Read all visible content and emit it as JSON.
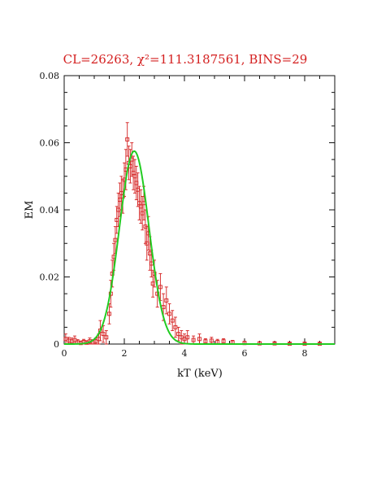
{
  "chart_data": {
    "type": "scatter",
    "title": "CL=26263, χ²=111.3187561, BINS=29",
    "xlabel": "kT (keV)",
    "ylabel": "EM",
    "xlim": [
      0,
      9
    ],
    "ylim": [
      0,
      0.08
    ],
    "xticks": [
      0,
      2,
      4,
      6,
      8
    ],
    "xtick_labels": [
      "0",
      "2",
      "4",
      "6",
      "8"
    ],
    "yticks": [
      0,
      0.02,
      0.04,
      0.06,
      0.08
    ],
    "ytick_labels": [
      "0",
      "0.02",
      "0.04",
      "0.06",
      "0.08"
    ],
    "grid": false,
    "colors": {
      "points": "#d42020",
      "fit": "#22cc22",
      "title": "#d42020",
      "axes": "#111111"
    },
    "series": [
      {
        "type": "scatter_errorbar",
        "points": [
          {
            "x": 0.05,
            "y": 0.0015,
            "err": 0.0015
          },
          {
            "x": 0.15,
            "y": 0.001,
            "err": 0.001
          },
          {
            "x": 0.25,
            "y": 0.0008,
            "err": 0.001
          },
          {
            "x": 0.35,
            "y": 0.0012,
            "err": 0.0012
          },
          {
            "x": 0.45,
            "y": 0.0005,
            "err": 0.0008
          },
          {
            "x": 0.55,
            "y": 0.0003,
            "err": 0.0006
          },
          {
            "x": 0.65,
            "y": 0.0006,
            "err": 0.0008
          },
          {
            "x": 0.75,
            "y": 0.0004,
            "err": 0.0006
          },
          {
            "x": 0.85,
            "y": 0.0008,
            "err": 0.001
          },
          {
            "x": 0.95,
            "y": 0.0005,
            "err": 0.0008
          },
          {
            "x": 1.05,
            "y": 0.0008,
            "err": 0.001
          },
          {
            "x": 1.15,
            "y": 0.0015,
            "err": 0.0015
          },
          {
            "x": 1.2,
            "y": 0.004,
            "err": 0.003
          },
          {
            "x": 1.3,
            "y": 0.003,
            "err": 0.0025
          },
          {
            "x": 1.4,
            "y": 0.002,
            "err": 0.002
          },
          {
            "x": 1.5,
            "y": 0.009,
            "err": 0.003
          },
          {
            "x": 1.55,
            "y": 0.015,
            "err": 0.004
          },
          {
            "x": 1.6,
            "y": 0.021,
            "err": 0.004
          },
          {
            "x": 1.65,
            "y": 0.026,
            "err": 0.004
          },
          {
            "x": 1.7,
            "y": 0.031,
            "err": 0.004
          },
          {
            "x": 1.75,
            "y": 0.037,
            "err": 0.004
          },
          {
            "x": 1.8,
            "y": 0.04,
            "err": 0.005
          },
          {
            "x": 1.85,
            "y": 0.043,
            "err": 0.005
          },
          {
            "x": 1.9,
            "y": 0.045,
            "err": 0.005
          },
          {
            "x": 1.95,
            "y": 0.044,
            "err": 0.005
          },
          {
            "x": 2.0,
            "y": 0.049,
            "err": 0.005
          },
          {
            "x": 2.05,
            "y": 0.052,
            "err": 0.006
          },
          {
            "x": 2.1,
            "y": 0.061,
            "err": 0.005
          },
          {
            "x": 2.15,
            "y": 0.054,
            "err": 0.005
          },
          {
            "x": 2.2,
            "y": 0.053,
            "err": 0.005
          },
          {
            "x": 2.25,
            "y": 0.055,
            "err": 0.005
          },
          {
            "x": 2.3,
            "y": 0.051,
            "err": 0.005
          },
          {
            "x": 2.35,
            "y": 0.05,
            "err": 0.005
          },
          {
            "x": 2.4,
            "y": 0.048,
            "err": 0.005
          },
          {
            "x": 2.45,
            "y": 0.046,
            "err": 0.005
          },
          {
            "x": 2.5,
            "y": 0.042,
            "err": 0.005
          },
          {
            "x": 2.55,
            "y": 0.041,
            "err": 0.005
          },
          {
            "x": 2.6,
            "y": 0.039,
            "err": 0.005
          },
          {
            "x": 2.65,
            "y": 0.042,
            "err": 0.005
          },
          {
            "x": 2.7,
            "y": 0.035,
            "err": 0.005
          },
          {
            "x": 2.75,
            "y": 0.03,
            "err": 0.005
          },
          {
            "x": 2.8,
            "y": 0.033,
            "err": 0.005
          },
          {
            "x": 2.85,
            "y": 0.027,
            "err": 0.005
          },
          {
            "x": 2.9,
            "y": 0.024,
            "err": 0.004
          },
          {
            "x": 2.95,
            "y": 0.018,
            "err": 0.004
          },
          {
            "x": 3.0,
            "y": 0.021,
            "err": 0.004
          },
          {
            "x": 3.1,
            "y": 0.015,
            "err": 0.004
          },
          {
            "x": 3.2,
            "y": 0.017,
            "err": 0.004
          },
          {
            "x": 3.3,
            "y": 0.011,
            "err": 0.004
          },
          {
            "x": 3.4,
            "y": 0.013,
            "err": 0.004
          },
          {
            "x": 3.5,
            "y": 0.009,
            "err": 0.003
          },
          {
            "x": 3.6,
            "y": 0.007,
            "err": 0.003
          },
          {
            "x": 3.7,
            "y": 0.005,
            "err": 0.003
          },
          {
            "x": 3.8,
            "y": 0.003,
            "err": 0.002
          },
          {
            "x": 3.9,
            "y": 0.002,
            "err": 0.002
          },
          {
            "x": 4.0,
            "y": 0.0015,
            "err": 0.0015
          },
          {
            "x": 4.1,
            "y": 0.002,
            "err": 0.002
          },
          {
            "x": 4.3,
            "y": 0.0012,
            "err": 0.0012
          },
          {
            "x": 4.5,
            "y": 0.0015,
            "err": 0.0015
          },
          {
            "x": 4.7,
            "y": 0.0008,
            "err": 0.0008
          },
          {
            "x": 4.9,
            "y": 0.001,
            "err": 0.001
          },
          {
            "x": 5.1,
            "y": 0.0006,
            "err": 0.0008
          },
          {
            "x": 5.3,
            "y": 0.0008,
            "err": 0.0008
          },
          {
            "x": 5.6,
            "y": 0.0005,
            "err": 0.0006
          },
          {
            "x": 6.0,
            "y": 0.0003,
            "err": 0.0005
          },
          {
            "x": 6.5,
            "y": 0.0002,
            "err": 0.0004
          },
          {
            "x": 7.0,
            "y": 0.0002,
            "err": 0.0003
          },
          {
            "x": 7.5,
            "y": 0.0001,
            "err": 0.0003
          },
          {
            "x": 8.0,
            "y": 0.0001,
            "err": 0.0002
          },
          {
            "x": 8.5,
            "y": 0.0001,
            "err": 0.0002
          }
        ]
      },
      {
        "type": "line",
        "model": "gaussian",
        "amplitude": 0.0575,
        "center": 2.33,
        "sigma": 0.49
      }
    ]
  }
}
